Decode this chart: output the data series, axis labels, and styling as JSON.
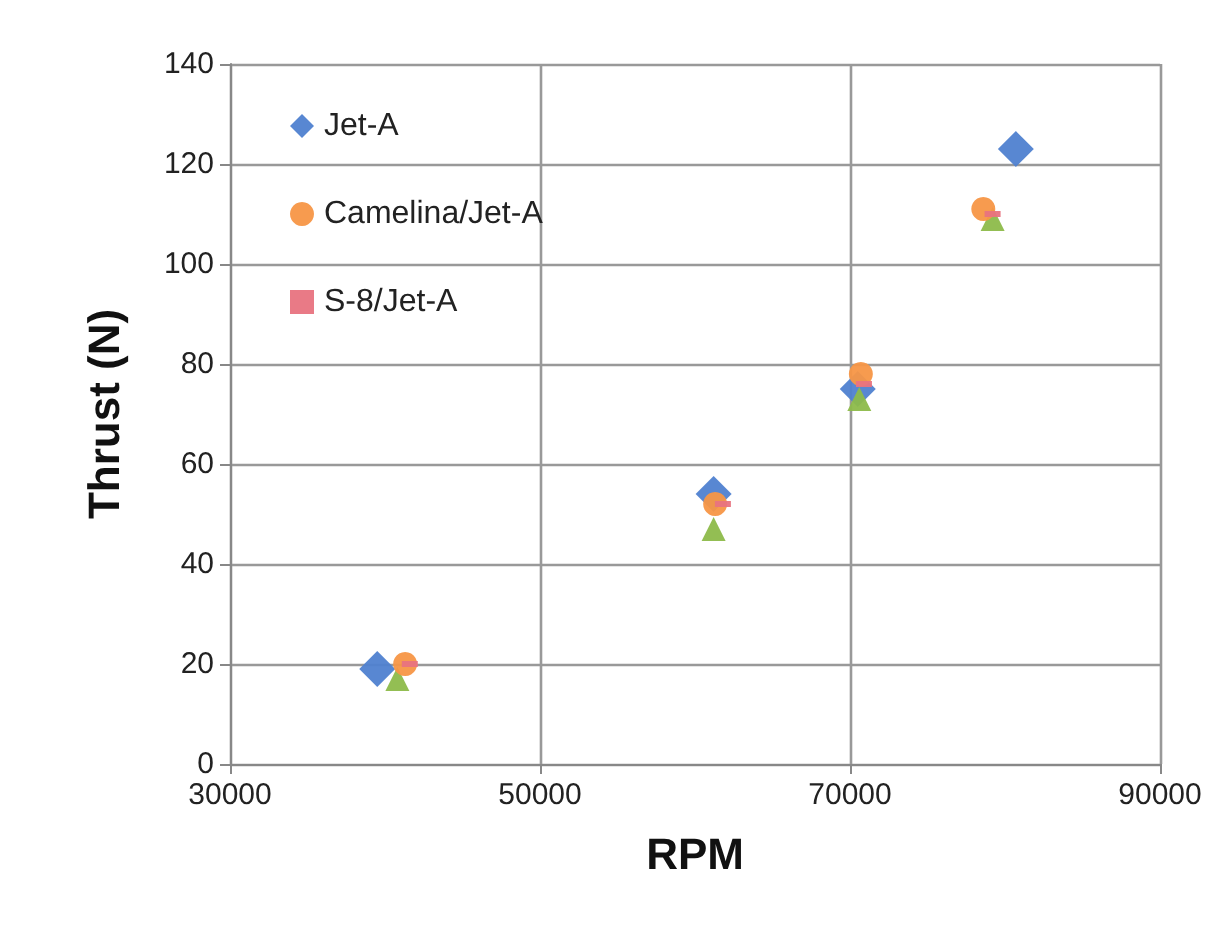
{
  "chart_data": {
    "type": "scatter",
    "xlabel": "RPM",
    "ylabel": "Thrust (N)",
    "xlim": [
      30000,
      90000
    ],
    "xticks": [
      30000,
      50000,
      70000,
      90000
    ],
    "ylim": [
      0,
      140
    ],
    "yticks": [
      0,
      20,
      40,
      60,
      80,
      100,
      120,
      140
    ],
    "grid": true,
    "legend": "top left",
    "series": [
      {
        "name": "Jet-A",
        "color": "#4f81d0",
        "marker": "diamond",
        "x": [
          39500,
          61200,
          70500,
          80700
        ],
        "values": [
          19,
          54,
          75,
          123
        ]
      },
      {
        "color": "#8dbb4a",
        "marker": "triangle",
        "x": [
          40800,
          61200,
          70600,
          79200
        ],
        "values": [
          17,
          47,
          73,
          109
        ]
      },
      {
        "name": "Camelina/Jet-A",
        "color": "#f79646",
        "marker": "circle",
        "x": [
          41300,
          61300,
          70700,
          78600
        ],
        "values": [
          20,
          52,
          78,
          111
        ]
      },
      {
        "name": "S-8/Jet-A",
        "color": "#e8737f",
        "marker": "square",
        "x": [
          41600,
          61800,
          70900,
          79200
        ],
        "values": [
          20,
          52,
          76,
          110
        ]
      }
    ]
  }
}
